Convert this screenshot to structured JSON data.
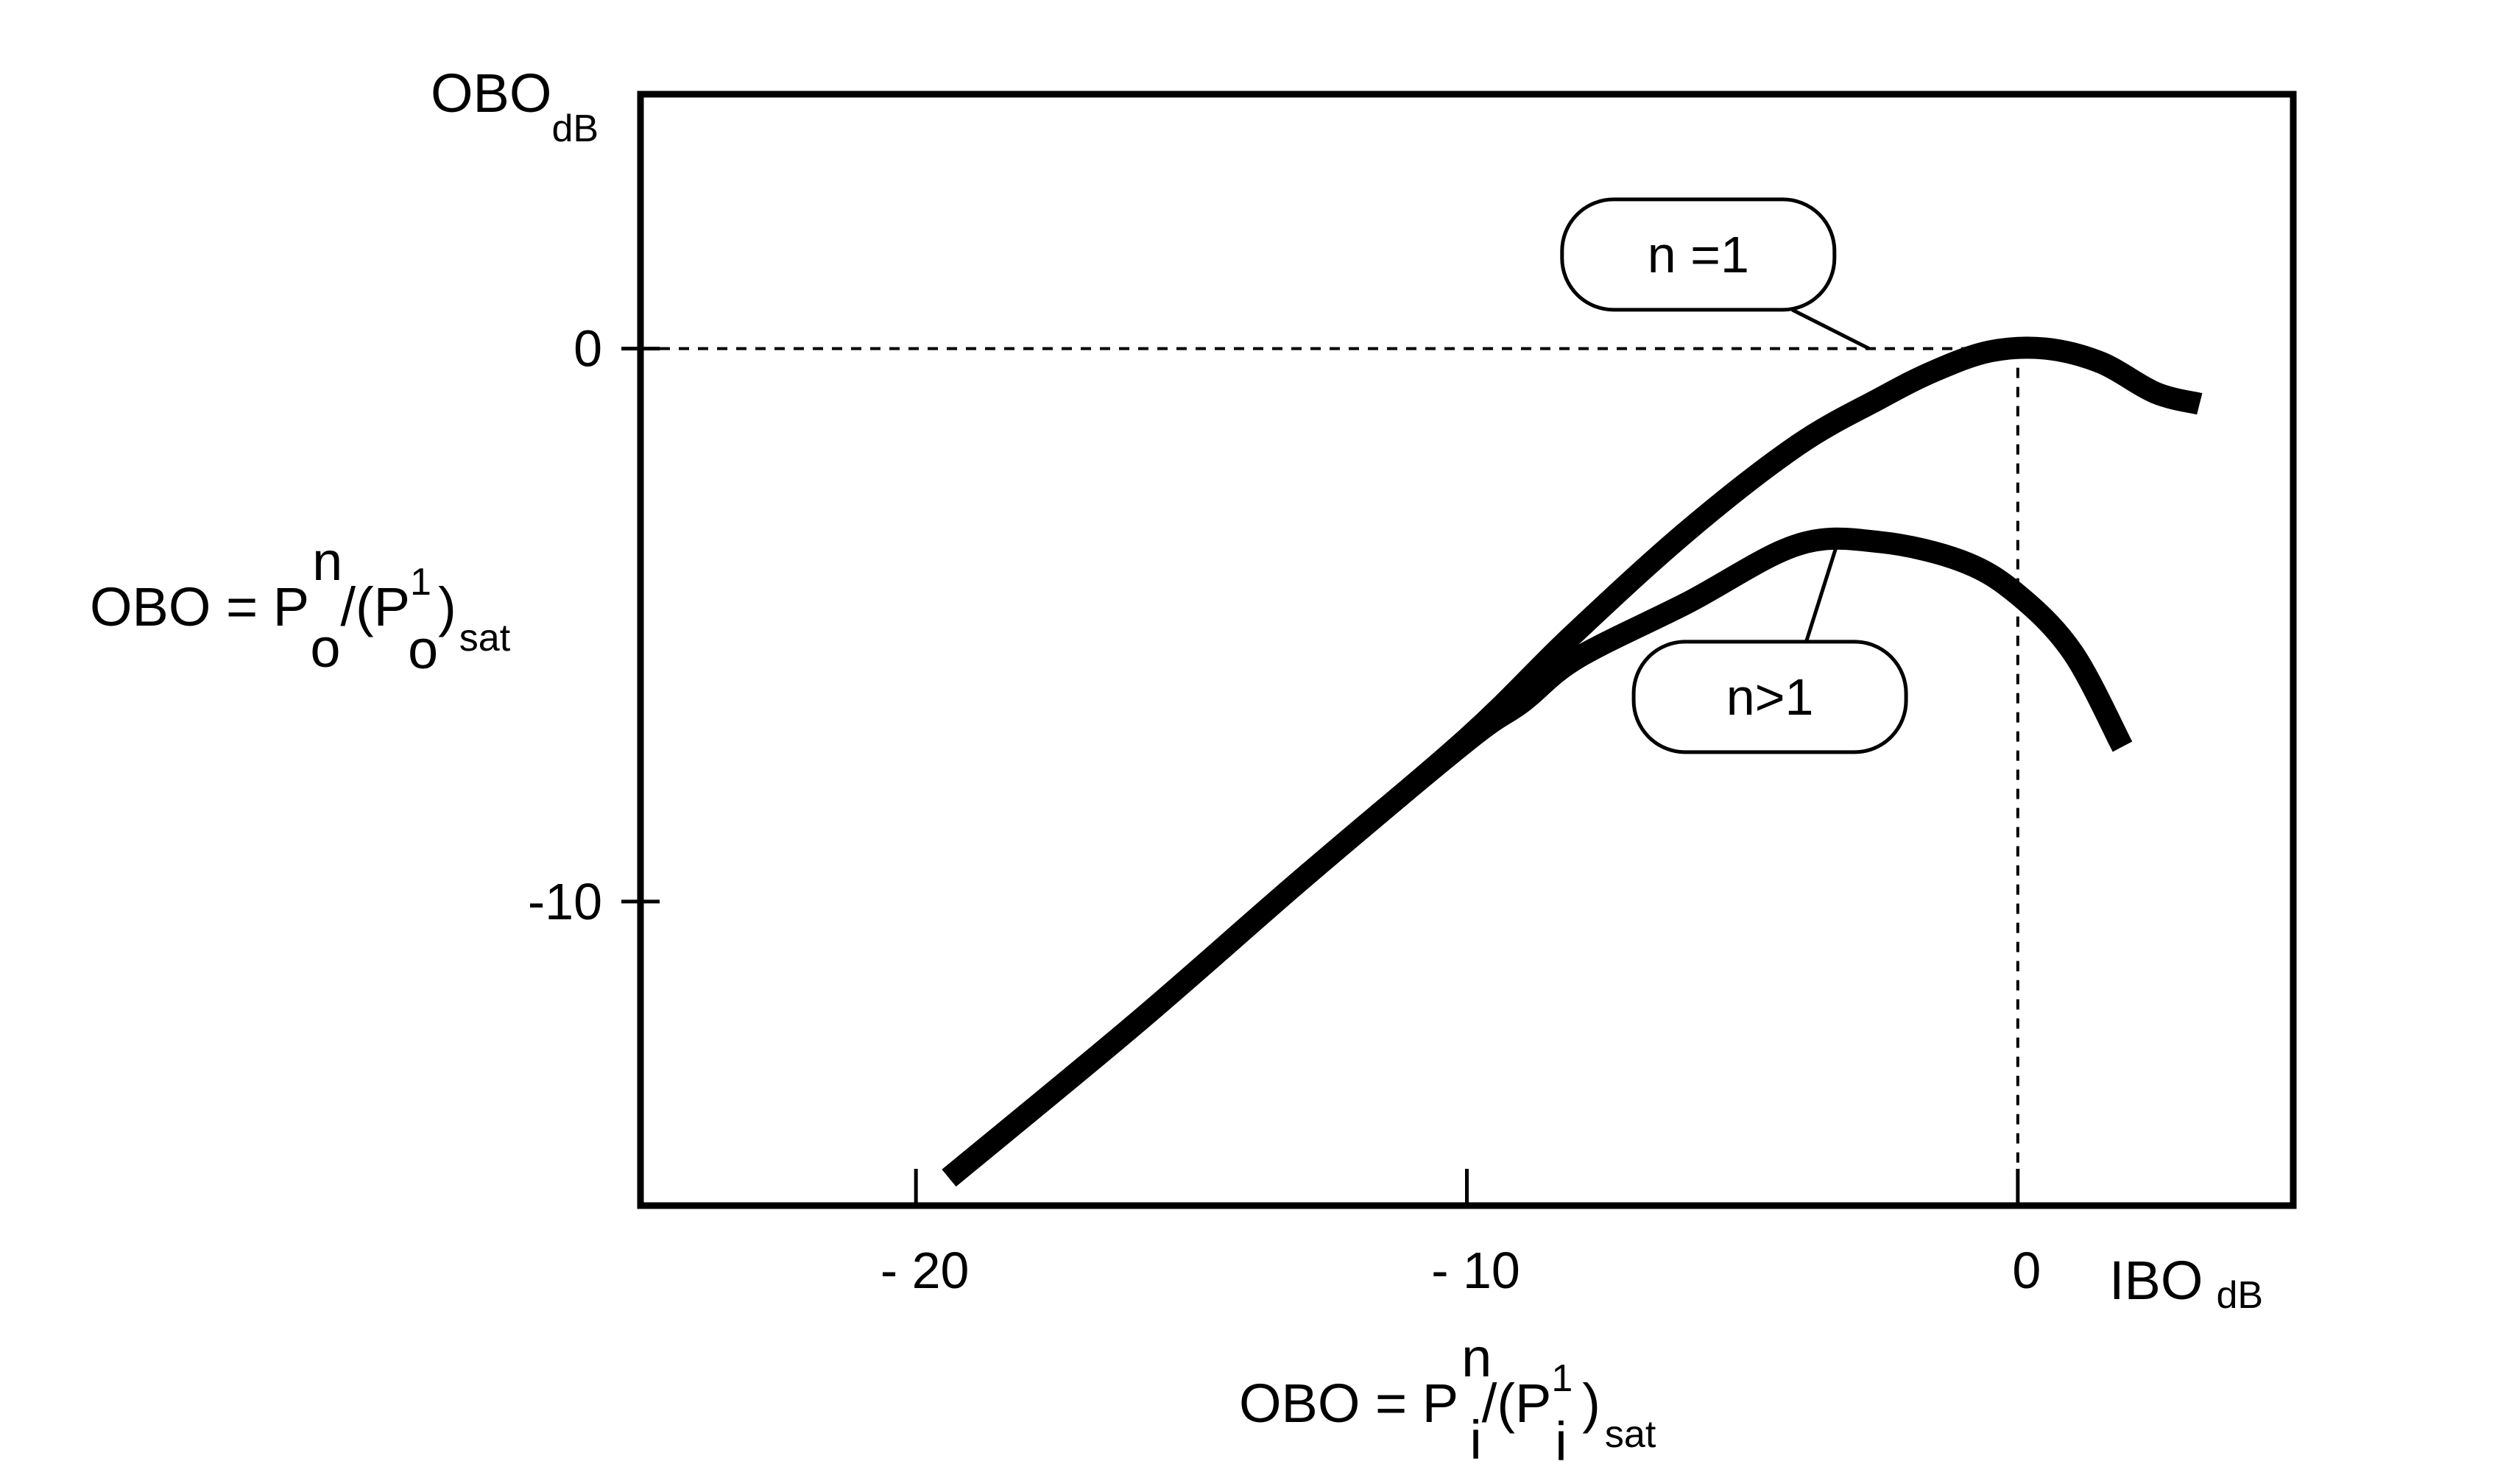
{
  "chart_data": {
    "type": "line",
    "x_axis": {
      "label_main": "IBO",
      "label_sub": "dB",
      "range": [
        -25,
        5
      ],
      "ticks": [
        -20,
        -10,
        0
      ],
      "tick_labels": [
        "- 20",
        "- 10",
        "0"
      ]
    },
    "y_axis": {
      "label_main": "OBO",
      "label_sub": "dB",
      "range": [
        -15.5,
        4.6
      ],
      "ticks": [
        0,
        -10
      ],
      "tick_labels": [
        "0",
        "-10"
      ]
    },
    "y_formula": {
      "lhs": "OBO = P",
      "sup1": "n",
      "sub1": "o",
      "mid": "/(P",
      "sup2": "1",
      "sub2": "o",
      "close": ")",
      "sub3": "sat"
    },
    "x_formula": {
      "lhs": "OBO = P",
      "sup1": "n",
      "sub1": "i",
      "mid": "/(P",
      "sup2": "1",
      "sub2": "i",
      "close": " )",
      "sub3": "sat"
    },
    "series": [
      {
        "name": "n =1",
        "x": [
          -19.4,
          -16,
          -13,
          -10,
          -8.1,
          -6,
          -4,
          -2.5,
          -1.5,
          -0.5,
          0.5,
          1.5,
          2.5,
          3.3
        ],
        "y": [
          -15,
          -12.2,
          -9.6,
          -7.05,
          -5.2,
          -3.3,
          -1.75,
          -0.9,
          -0.4,
          -0.05,
          0,
          -0.25,
          -0.8,
          -1
        ]
      },
      {
        "name": "n>1",
        "x": [
          -19.4,
          -16,
          -13,
          -10,
          -9,
          -8,
          -6,
          -4,
          -2.5,
          -1,
          0,
          1,
          1.9
        ],
        "y": [
          -15,
          -12.2,
          -9.6,
          -7.1,
          -6.4,
          -5.6,
          -4.6,
          -3.55,
          -3.5,
          -3.85,
          -4.45,
          -5.5,
          -7.2
        ]
      }
    ],
    "reference_lines": [
      {
        "orientation": "horizontal",
        "y": 0,
        "from_x": -25,
        "to_x": -0.5,
        "style": "dashed"
      },
      {
        "orientation": "vertical",
        "x": 0,
        "from_y": 0,
        "to_y": -15.5,
        "style": "dashed"
      }
    ],
    "callouts": [
      {
        "series": "n =1",
        "label_x": -5.8,
        "label_y": 1.7,
        "anchor_x": -2.7,
        "anchor_y": 0
      },
      {
        "series": "n>1",
        "label_x": -4.5,
        "label_y": -6.3,
        "anchor_x": -3.3,
        "anchor_y": -3.6
      }
    ],
    "grid": false,
    "legend": "none",
    "line_color": "#000000"
  }
}
